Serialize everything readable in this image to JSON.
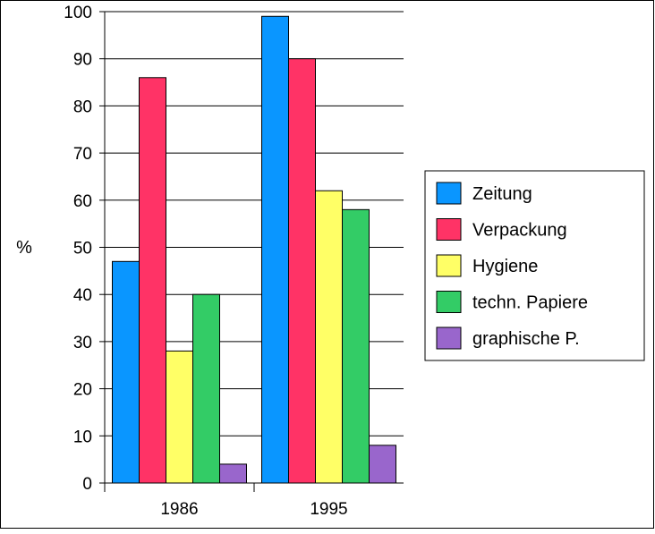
{
  "chart_data": {
    "type": "bar",
    "categories": [
      "1986",
      "1995"
    ],
    "series": [
      {
        "name": "Zeitung",
        "values": [
          47,
          99
        ],
        "color": "#0a96ff"
      },
      {
        "name": "Verpackung",
        "values": [
          86,
          90
        ],
        "color": "#ff3366"
      },
      {
        "name": "Hygiene",
        "values": [
          28,
          62
        ],
        "color": "#ffff66"
      },
      {
        "name": "techn. Papiere",
        "values": [
          40,
          58
        ],
        "color": "#33cc66"
      },
      {
        "name": "graphische P.",
        "values": [
          4,
          8
        ],
        "color": "#9966cc"
      }
    ],
    "ylabel": "%",
    "ylim": [
      0,
      100
    ],
    "yticks": [
      0,
      10,
      20,
      30,
      40,
      50,
      60,
      70,
      80,
      90,
      100
    ],
    "grid": true,
    "legend": "right"
  }
}
